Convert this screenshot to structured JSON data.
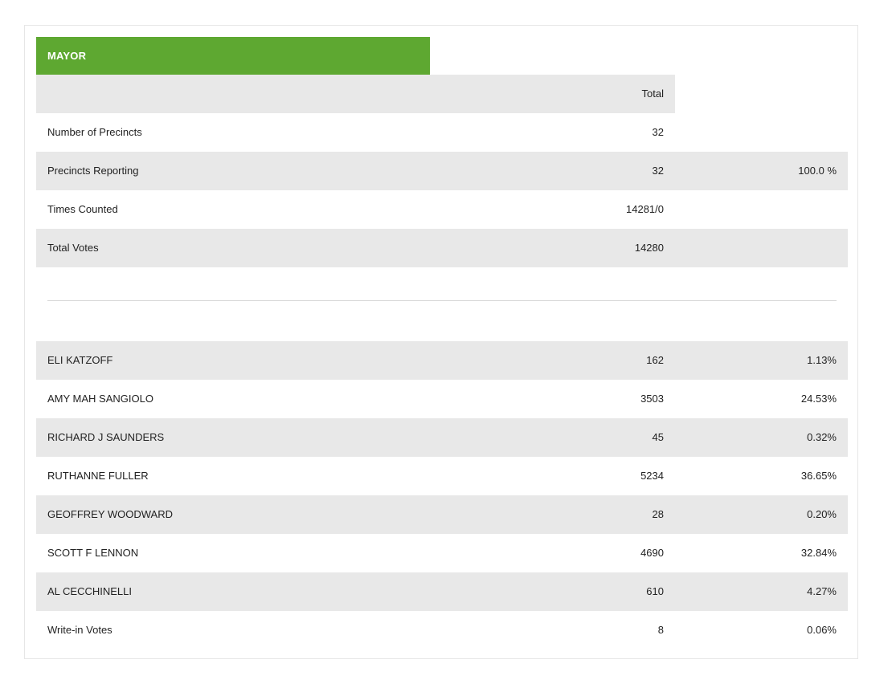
{
  "contest": {
    "title": "MAYOR",
    "total_header": "Total",
    "accent_color": "#5ea831"
  },
  "summary": [
    {
      "label": "Number of Precincts",
      "value": "32",
      "pct": ""
    },
    {
      "label": "Precincts Reporting",
      "value": "32",
      "pct": "100.0 %"
    },
    {
      "label": "Times Counted",
      "value": "14281/0",
      "pct": ""
    },
    {
      "label": "Total Votes",
      "value": "14280",
      "pct": ""
    }
  ],
  "candidates": [
    {
      "label": "ELI KATZOFF",
      "value": "162",
      "pct": "1.13%"
    },
    {
      "label": "AMY MAH SANGIOLO",
      "value": "3503",
      "pct": "24.53%"
    },
    {
      "label": "RICHARD J SAUNDERS",
      "value": "45",
      "pct": "0.32%"
    },
    {
      "label": "RUTHANNE FULLER",
      "value": "5234",
      "pct": "36.65%"
    },
    {
      "label": "GEOFFREY WOODWARD",
      "value": "28",
      "pct": "0.20%"
    },
    {
      "label": "SCOTT F LENNON",
      "value": "4690",
      "pct": "32.84%"
    },
    {
      "label": "AL CECCHINELLI",
      "value": "610",
      "pct": "4.27%"
    },
    {
      "label": "Write-in Votes",
      "value": "8",
      "pct": "0.06%"
    }
  ]
}
